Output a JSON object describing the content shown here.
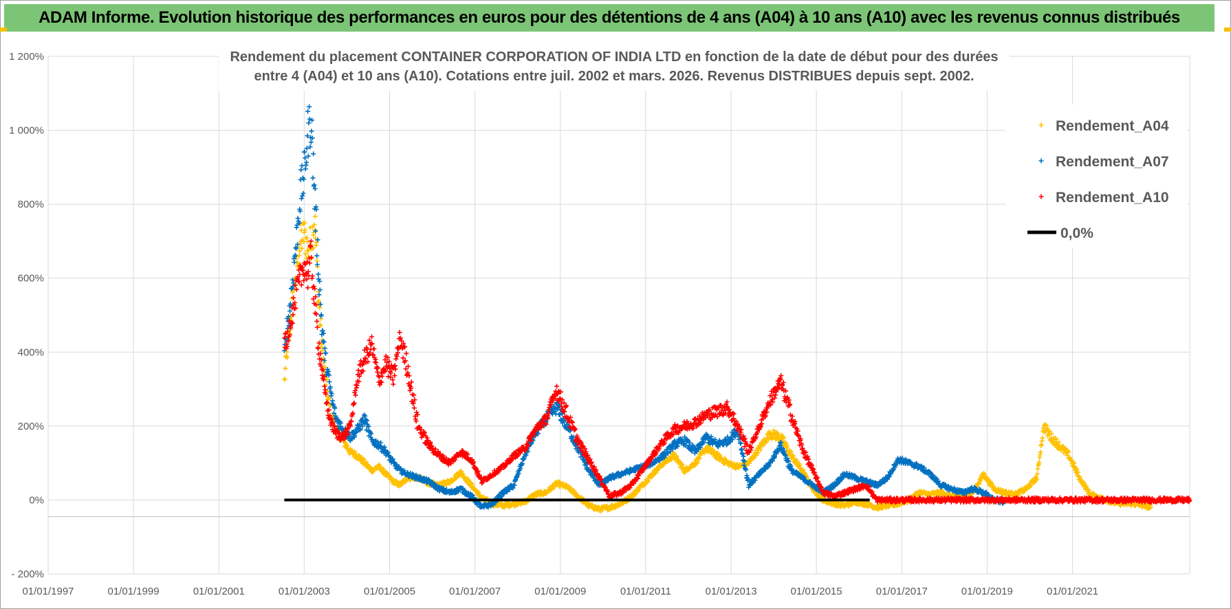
{
  "header": {
    "title": "ADAM Informe. Evolution historique des performances en euros pour des détentions de 4 ans (A04) à 10 ans (A10) avec les revenus connus distribués"
  },
  "colors": {
    "header_bg": "#7cc576",
    "header_accent": "#f2c200",
    "A04": "#ffc000",
    "A07": "#0070c0",
    "A10": "#ff0000",
    "zero_line": "#000000",
    "grid": "#d9d9d9"
  },
  "chart_data": {
    "type": "scatter",
    "title_lines": [
      "Rendement du placement CONTAINER CORPORATION OF INDIA LTD en fonction de la date de début pour des durées",
      "entre 4 (A04) et 10 ans (A10).  Cotations entre juil. 2002 et mars. 2026. Revenus DISTRIBUES depuis sept. 2002."
    ],
    "y_unit": "%",
    "ylim": [
      -200,
      1200
    ],
    "y_ticks": [
      -200,
      0,
      200,
      400,
      600,
      800,
      1000,
      1200
    ],
    "y_tick_labels": [
      "- 200%",
      "0%",
      "200%",
      "400%",
      "600%",
      "800%",
      "1 000%",
      "1 200%"
    ],
    "x_ticks": [
      "1997-01-01",
      "1999-01-01",
      "2001-01-01",
      "2003-01-01",
      "2005-01-01",
      "2007-01-01",
      "2009-01-01",
      "2011-01-01",
      "2013-01-01",
      "2015-01-01",
      "2017-01-01",
      "2019-01-01",
      "2021-01-01"
    ],
    "x_tick_labels": [
      "01/01/1997",
      "01/01/1999",
      "01/01/2001",
      "01/01/2003",
      "01/01/2005",
      "01/01/2007",
      "01/01/2009",
      "01/01/2011",
      "01/01/2013",
      "01/01/2015",
      "01/01/2017",
      "01/01/2019",
      "01/01/2021"
    ],
    "xlim": [
      "1997-01-01",
      "2023-10-01"
    ],
    "grid": true,
    "legend_position": "top-right",
    "marker": "plus",
    "series": [
      {
        "name": "Rendement_A04",
        "color": "#ffc000",
        "points": [
          [
            "2002-07-15",
            320
          ],
          [
            "2002-08-01",
            380
          ],
          [
            "2002-09-01",
            470
          ],
          [
            "2002-10-01",
            560
          ],
          [
            "2002-11-01",
            640
          ],
          [
            "2002-12-01",
            700
          ],
          [
            "2003-01-01",
            720
          ],
          [
            "2003-02-01",
            680
          ],
          [
            "2003-03-01",
            700
          ],
          [
            "2003-04-01",
            760
          ],
          [
            "2003-05-01",
            560
          ],
          [
            "2003-06-01",
            420
          ],
          [
            "2003-07-01",
            330
          ],
          [
            "2003-08-01",
            260
          ],
          [
            "2003-09-01",
            220
          ],
          [
            "2003-10-01",
            190
          ],
          [
            "2003-12-01",
            160
          ],
          [
            "2004-02-01",
            130
          ],
          [
            "2004-04-01",
            120
          ],
          [
            "2004-06-01",
            100
          ],
          [
            "2004-08-01",
            80
          ],
          [
            "2004-10-01",
            90
          ],
          [
            "2004-12-01",
            70
          ],
          [
            "2005-02-01",
            50
          ],
          [
            "2005-04-01",
            40
          ],
          [
            "2005-06-01",
            60
          ],
          [
            "2005-09-01",
            60
          ],
          [
            "2005-12-01",
            45
          ],
          [
            "2006-03-01",
            40
          ],
          [
            "2006-06-01",
            50
          ],
          [
            "2006-09-01",
            75
          ],
          [
            "2006-12-01",
            40
          ],
          [
            "2007-03-01",
            5
          ],
          [
            "2007-06-01",
            -10
          ],
          [
            "2007-09-01",
            -15
          ],
          [
            "2007-12-01",
            -10
          ],
          [
            "2008-03-01",
            -5
          ],
          [
            "2008-06-01",
            15
          ],
          [
            "2008-09-01",
            20
          ],
          [
            "2008-12-01",
            45
          ],
          [
            "2009-03-01",
            35
          ],
          [
            "2009-06-01",
            10
          ],
          [
            "2009-09-01",
            -15
          ],
          [
            "2009-12-01",
            -25
          ],
          [
            "2010-03-01",
            -20
          ],
          [
            "2010-06-01",
            -10
          ],
          [
            "2010-09-01",
            10
          ],
          [
            "2010-12-01",
            40
          ],
          [
            "2011-03-01",
            70
          ],
          [
            "2011-06-01",
            100
          ],
          [
            "2011-09-01",
            120
          ],
          [
            "2011-12-01",
            80
          ],
          [
            "2012-03-01",
            100
          ],
          [
            "2012-06-01",
            140
          ],
          [
            "2012-09-01",
            120
          ],
          [
            "2012-12-01",
            100
          ],
          [
            "2013-03-01",
            90
          ],
          [
            "2013-06-01",
            100
          ],
          [
            "2013-09-01",
            140
          ],
          [
            "2013-12-01",
            180
          ],
          [
            "2014-03-01",
            170
          ],
          [
            "2014-06-01",
            120
          ],
          [
            "2014-09-01",
            80
          ],
          [
            "2014-12-01",
            30
          ],
          [
            "2015-03-01",
            0
          ],
          [
            "2015-06-01",
            -10
          ],
          [
            "2015-09-01",
            -15
          ],
          [
            "2015-12-01",
            -5
          ],
          [
            "2016-03-01",
            -10
          ],
          [
            "2016-06-01",
            -20
          ],
          [
            "2016-09-01",
            -15
          ],
          [
            "2016-12-01",
            -10
          ],
          [
            "2017-03-01",
            0
          ],
          [
            "2017-06-01",
            20
          ],
          [
            "2017-09-01",
            15
          ],
          [
            "2017-12-01",
            20
          ],
          [
            "2018-03-01",
            10
          ],
          [
            "2018-06-01",
            15
          ],
          [
            "2018-09-01",
            20
          ],
          [
            "2018-12-01",
            70
          ],
          [
            "2019-03-01",
            30
          ],
          [
            "2019-06-01",
            20
          ],
          [
            "2019-09-01",
            15
          ],
          [
            "2019-12-01",
            30
          ],
          [
            "2020-03-01",
            60
          ],
          [
            "2020-05-01",
            200
          ],
          [
            "2020-07-01",
            170
          ],
          [
            "2020-09-01",
            150
          ],
          [
            "2020-12-01",
            120
          ],
          [
            "2021-03-01",
            60
          ],
          [
            "2021-06-01",
            15
          ],
          [
            "2021-09-01",
            5
          ],
          [
            "2021-12-01",
            -5
          ],
          [
            "2022-03-01",
            -10
          ],
          [
            "2022-06-01",
            -10
          ],
          [
            "2022-09-01",
            -15
          ],
          [
            "2022-11-01",
            -20
          ]
        ]
      },
      {
        "name": "Rendement_A07",
        "color": "#0070c0",
        "points": [
          [
            "2002-07-15",
            390
          ],
          [
            "2002-08-01",
            450
          ],
          [
            "2002-09-01",
            520
          ],
          [
            "2002-10-01",
            620
          ],
          [
            "2002-11-01",
            720
          ],
          [
            "2002-12-01",
            830
          ],
          [
            "2003-01-01",
            880
          ],
          [
            "2003-02-01",
            990
          ],
          [
            "2003-03-01",
            1030
          ],
          [
            "2003-04-01",
            820
          ],
          [
            "2003-05-01",
            640
          ],
          [
            "2003-06-01",
            470
          ],
          [
            "2003-07-01",
            380
          ],
          [
            "2003-08-01",
            320
          ],
          [
            "2003-09-01",
            260
          ],
          [
            "2003-10-01",
            220
          ],
          [
            "2003-12-01",
            190
          ],
          [
            "2004-02-01",
            170
          ],
          [
            "2004-04-01",
            190
          ],
          [
            "2004-06-01",
            220
          ],
          [
            "2004-08-01",
            160
          ],
          [
            "2004-10-01",
            150
          ],
          [
            "2004-12-01",
            130
          ],
          [
            "2005-02-01",
            100
          ],
          [
            "2005-04-01",
            80
          ],
          [
            "2005-06-01",
            70
          ],
          [
            "2005-09-01",
            60
          ],
          [
            "2005-12-01",
            50
          ],
          [
            "2006-03-01",
            30
          ],
          [
            "2006-06-01",
            20
          ],
          [
            "2006-09-01",
            30
          ],
          [
            "2006-12-01",
            10
          ],
          [
            "2007-03-01",
            -20
          ],
          [
            "2007-06-01",
            -10
          ],
          [
            "2007-09-01",
            20
          ],
          [
            "2007-12-01",
            40
          ],
          [
            "2008-03-01",
            120
          ],
          [
            "2008-06-01",
            180
          ],
          [
            "2008-09-01",
            220
          ],
          [
            "2008-12-01",
            250
          ],
          [
            "2009-03-01",
            200
          ],
          [
            "2009-06-01",
            140
          ],
          [
            "2009-09-01",
            80
          ],
          [
            "2009-12-01",
            40
          ],
          [
            "2010-03-01",
            60
          ],
          [
            "2010-06-01",
            70
          ],
          [
            "2010-09-01",
            80
          ],
          [
            "2010-12-01",
            90
          ],
          [
            "2011-03-01",
            100
          ],
          [
            "2011-06-01",
            120
          ],
          [
            "2011-09-01",
            150
          ],
          [
            "2011-12-01",
            160
          ],
          [
            "2012-03-01",
            130
          ],
          [
            "2012-06-01",
            170
          ],
          [
            "2012-09-01",
            150
          ],
          [
            "2012-12-01",
            160
          ],
          [
            "2013-03-01",
            190
          ],
          [
            "2013-06-01",
            40
          ],
          [
            "2013-09-01",
            70
          ],
          [
            "2013-12-01",
            100
          ],
          [
            "2014-03-01",
            150
          ],
          [
            "2014-06-01",
            80
          ],
          [
            "2014-09-01",
            60
          ],
          [
            "2014-12-01",
            40
          ],
          [
            "2015-03-01",
            20
          ],
          [
            "2015-06-01",
            40
          ],
          [
            "2015-09-01",
            70
          ],
          [
            "2015-12-01",
            60
          ],
          [
            "2016-03-01",
            50
          ],
          [
            "2016-06-01",
            40
          ],
          [
            "2016-09-01",
            60
          ],
          [
            "2016-12-01",
            110
          ],
          [
            "2017-03-01",
            100
          ],
          [
            "2017-06-01",
            90
          ],
          [
            "2017-09-01",
            70
          ],
          [
            "2017-12-01",
            40
          ],
          [
            "2018-03-01",
            30
          ],
          [
            "2018-06-01",
            20
          ],
          [
            "2018-09-01",
            30
          ],
          [
            "2018-12-01",
            20
          ],
          [
            "2019-03-01",
            0
          ],
          [
            "2019-06-01",
            -5
          ]
        ]
      },
      {
        "name": "Rendement_A10",
        "color": "#ff0000",
        "points": [
          [
            "2002-07-15",
            450
          ],
          [
            "2002-08-01",
            410
          ],
          [
            "2002-09-01",
            480
          ],
          [
            "2002-10-01",
            520
          ],
          [
            "2002-11-01",
            570
          ],
          [
            "2002-12-01",
            600
          ],
          [
            "2003-01-01",
            640
          ],
          [
            "2003-02-01",
            610
          ],
          [
            "2003-03-01",
            660
          ],
          [
            "2003-04-01",
            540
          ],
          [
            "2003-05-01",
            430
          ],
          [
            "2003-06-01",
            360
          ],
          [
            "2003-07-01",
            280
          ],
          [
            "2003-08-01",
            230
          ],
          [
            "2003-09-01",
            200
          ],
          [
            "2003-10-01",
            180
          ],
          [
            "2003-12-01",
            170
          ],
          [
            "2004-02-01",
            200
          ],
          [
            "2004-04-01",
            330
          ],
          [
            "2004-06-01",
            380
          ],
          [
            "2004-08-01",
            420
          ],
          [
            "2004-10-01",
            320
          ],
          [
            "2004-12-01",
            370
          ],
          [
            "2005-02-01",
            330
          ],
          [
            "2005-04-01",
            440
          ],
          [
            "2005-06-01",
            360
          ],
          [
            "2005-09-01",
            200
          ],
          [
            "2005-12-01",
            150
          ],
          [
            "2006-03-01",
            120
          ],
          [
            "2006-06-01",
            100
          ],
          [
            "2006-09-01",
            130
          ],
          [
            "2006-12-01",
            110
          ],
          [
            "2007-03-01",
            50
          ],
          [
            "2007-06-01",
            70
          ],
          [
            "2007-09-01",
            90
          ],
          [
            "2007-12-01",
            120
          ],
          [
            "2008-03-01",
            140
          ],
          [
            "2008-06-01",
            190
          ],
          [
            "2008-09-01",
            220
          ],
          [
            "2008-12-01",
            300
          ],
          [
            "2009-03-01",
            230
          ],
          [
            "2009-06-01",
            160
          ],
          [
            "2009-09-01",
            110
          ],
          [
            "2009-12-01",
            60
          ],
          [
            "2010-03-01",
            10
          ],
          [
            "2010-06-01",
            20
          ],
          [
            "2010-09-01",
            40
          ],
          [
            "2010-12-01",
            80
          ],
          [
            "2011-03-01",
            120
          ],
          [
            "2011-06-01",
            160
          ],
          [
            "2011-09-01",
            190
          ],
          [
            "2011-12-01",
            200
          ],
          [
            "2012-03-01",
            210
          ],
          [
            "2012-06-01",
            230
          ],
          [
            "2012-09-01",
            240
          ],
          [
            "2012-12-01",
            250
          ],
          [
            "2013-03-01",
            200
          ],
          [
            "2013-06-01",
            130
          ],
          [
            "2013-09-01",
            200
          ],
          [
            "2013-12-01",
            270
          ],
          [
            "2014-03-01",
            320
          ],
          [
            "2014-06-01",
            230
          ],
          [
            "2014-09-01",
            140
          ],
          [
            "2014-12-01",
            80
          ],
          [
            "2015-03-01",
            20
          ],
          [
            "2015-06-01",
            10
          ],
          [
            "2015-09-01",
            20
          ],
          [
            "2015-12-01",
            30
          ],
          [
            "2016-03-01",
            40
          ],
          [
            "2016-06-01",
            0
          ],
          [
            "2017-06-01",
            0
          ],
          [
            "2018-06-01",
            0
          ],
          [
            "2019-06-01",
            0
          ],
          [
            "2020-06-01",
            0
          ],
          [
            "2021-06-01",
            0
          ],
          [
            "2022-06-01",
            0
          ],
          [
            "2023-10-01",
            0
          ]
        ]
      }
    ],
    "reference_line": {
      "name": "0,0%",
      "y": 0,
      "x_start": "2002-07-15",
      "x_end": "2016-04-01",
      "color": "#000000"
    },
    "legend": [
      {
        "label": "Rendement_A04",
        "marker": "plus",
        "color": "#ffc000"
      },
      {
        "label": "Rendement_A07",
        "marker": "plus",
        "color": "#0070c0"
      },
      {
        "label": "Rendement_A10",
        "marker": "plus",
        "color": "#ff0000"
      },
      {
        "label": "0,0%",
        "marker": "line",
        "color": "#000000"
      }
    ]
  }
}
